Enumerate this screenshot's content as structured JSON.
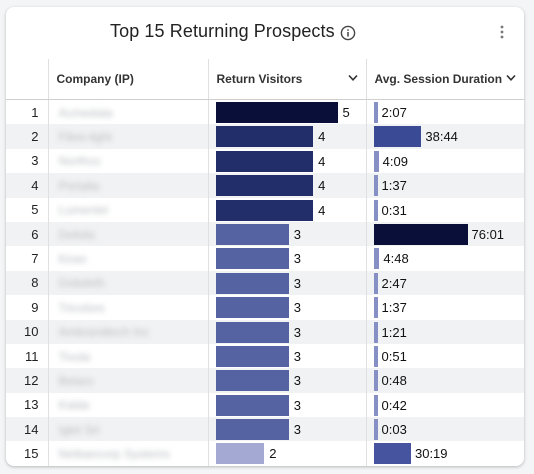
{
  "widget": {
    "title": "Top 15 Returning Prospects",
    "info_icon": "info-icon",
    "menu_icon": "kebab-menu-icon"
  },
  "columns": {
    "company": "Company (IP)",
    "visitors": "Return Visitors",
    "duration": "Avg. Session Duration"
  },
  "rows": [
    {
      "rank": "1",
      "company": "Acmedata",
      "visitors": "5",
      "visitors_value": 5,
      "visitors_color": "#0a0f3a",
      "duration": "2:07",
      "duration_minutes": 2.12,
      "duration_color": "#8690c4"
    },
    {
      "rank": "2",
      "company": "Fibre-light",
      "visitors": "4",
      "visitors_value": 4,
      "visitors_color": "#222e6a",
      "duration": "38:44",
      "duration_minutes": 38.73,
      "duration_color": "#3a4a94"
    },
    {
      "rank": "3",
      "company": "Northco",
      "visitors": "4",
      "visitors_value": 4,
      "visitors_color": "#222e6a",
      "duration": "4:09",
      "duration_minutes": 4.15,
      "duration_color": "#8690c4"
    },
    {
      "rank": "4",
      "company": "Portalia",
      "visitors": "4",
      "visitors_value": 4,
      "visitors_color": "#222e6a",
      "duration": "1:37",
      "duration_minutes": 1.62,
      "duration_color": "#8690c4"
    },
    {
      "rank": "5",
      "company": "Lumentel",
      "visitors": "4",
      "visitors_value": 4,
      "visitors_color": "#222e6a",
      "duration": "0:31",
      "duration_minutes": 0.52,
      "duration_color": "#8690c4"
    },
    {
      "rank": "6",
      "company": "Defolix",
      "visitors": "3",
      "visitors_value": 3,
      "visitors_color": "#5563a2",
      "duration": "76:01",
      "duration_minutes": 76.02,
      "duration_color": "#0a0f3a"
    },
    {
      "rank": "7",
      "company": "Kiran",
      "visitors": "3",
      "visitors_value": 3,
      "visitors_color": "#5563a2",
      "duration": "4:48",
      "duration_minutes": 4.8,
      "duration_color": "#8690c4"
    },
    {
      "rank": "8",
      "company": "Gobdeth",
      "visitors": "3",
      "visitors_value": 3,
      "visitors_color": "#5563a2",
      "duration": "2:47",
      "duration_minutes": 2.78,
      "duration_color": "#8690c4"
    },
    {
      "rank": "9",
      "company": "Tricolore",
      "visitors": "3",
      "visitors_value": 3,
      "visitors_color": "#5563a2",
      "duration": "1:37",
      "duration_minutes": 1.62,
      "duration_color": "#8690c4"
    },
    {
      "rank": "10",
      "company": "Ambrandtech Inc",
      "visitors": "3",
      "visitors_value": 3,
      "visitors_color": "#5563a2",
      "duration": "1:21",
      "duration_minutes": 1.35,
      "duration_color": "#8690c4"
    },
    {
      "rank": "11",
      "company": "Tivola",
      "visitors": "3",
      "visitors_value": 3,
      "visitors_color": "#5563a2",
      "duration": "0:51",
      "duration_minutes": 0.85,
      "duration_color": "#8690c4"
    },
    {
      "rank": "12",
      "company": "Belaro",
      "visitors": "3",
      "visitors_value": 3,
      "visitors_color": "#5563a2",
      "duration": "0:48",
      "duration_minutes": 0.8,
      "duration_color": "#8690c4"
    },
    {
      "rank": "13",
      "company": "Kalda",
      "visitors": "3",
      "visitors_value": 3,
      "visitors_color": "#5563a2",
      "duration": "0:42",
      "duration_minutes": 0.7,
      "duration_color": "#8690c4"
    },
    {
      "rank": "14",
      "company": "Igtel Srl",
      "visitors": "3",
      "visitors_value": 3,
      "visitors_color": "#5563a2",
      "duration": "0:03",
      "duration_minutes": 0.05,
      "duration_color": "#8690c4"
    },
    {
      "rank": "15",
      "company": "Netbancorp Systems",
      "visitors": "2",
      "visitors_value": 2,
      "visitors_color": "#a3a9d3",
      "duration": "30:19",
      "duration_minutes": 30.32,
      "duration_color": "#4654a0"
    }
  ],
  "scales": {
    "visitors_max": 5,
    "duration_max_minutes": 76.02
  }
}
